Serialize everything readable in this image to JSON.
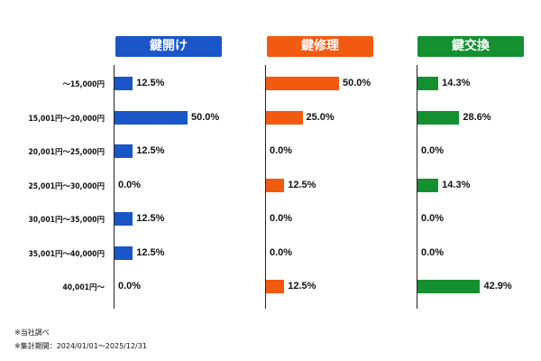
{
  "chart_data": {
    "type": "bar",
    "categories": [
      "～15,000円",
      "15,001円～20,000円",
      "20,001円～25,000円",
      "25,001円～30,000円",
      "30,001円～35,000円",
      "35,001円～40,000円",
      "40,001円～"
    ],
    "series": [
      {
        "name": "鍵開け",
        "color": "#1a56c8",
        "values": [
          12.5,
          50.0,
          12.5,
          0.0,
          12.5,
          12.5,
          0.0
        ],
        "labels": [
          "12.5%",
          "50.0%",
          "12.5%",
          "0.0%",
          "12.5%",
          "12.5%",
          "0.0%"
        ]
      },
      {
        "name": "鍵修理",
        "color": "#f25a10",
        "values": [
          50.0,
          25.0,
          0.0,
          12.5,
          0.0,
          0.0,
          12.5
        ],
        "labels": [
          "50.0%",
          "25.0%",
          "0.0%",
          "12.5%",
          "0.0%",
          "0.0%",
          "12.5%"
        ]
      },
      {
        "name": "鍵交換",
        "color": "#149030",
        "values": [
          14.3,
          28.6,
          0.0,
          14.3,
          0.0,
          0.0,
          42.9
        ],
        "labels": [
          "14.3%",
          "28.6%",
          "0.0%",
          "14.3%",
          "0.0%",
          "0.0%",
          "42.9%"
        ]
      }
    ],
    "value_unit": "%",
    "xlim": [
      0,
      100
    ],
    "grid": false
  },
  "notes": [
    "※当社調べ",
    "※集計期間：2024/01/01～2025/12/31"
  ]
}
